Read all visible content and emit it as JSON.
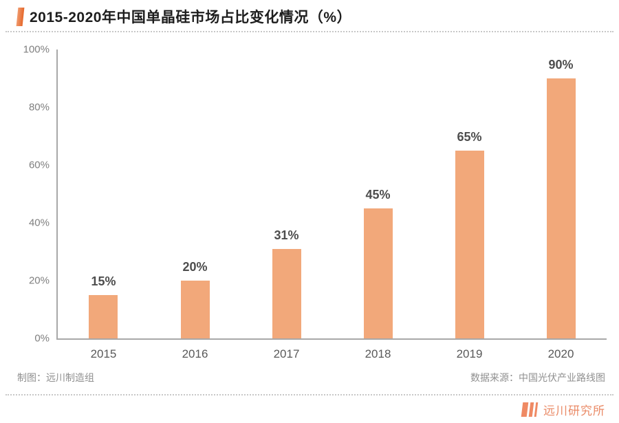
{
  "header": {
    "title": "2015-2020年中国单晶硅市场占比变化情况（%）"
  },
  "chart_data": {
    "type": "bar",
    "title": "2015-2020年中国单晶硅市场占比变化情况（%）",
    "categories": [
      "2015",
      "2016",
      "2017",
      "2018",
      "2019",
      "2020"
    ],
    "values": [
      15,
      20,
      31,
      45,
      65,
      90
    ],
    "value_labels": [
      "15%",
      "20%",
      "31%",
      "45%",
      "65%",
      "90%"
    ],
    "xlabel": "",
    "ylabel": "",
    "ylim": [
      0,
      100
    ],
    "ytick_values": [
      0,
      20,
      40,
      60,
      80,
      100
    ],
    "ytick_labels": [
      "0%",
      "20%",
      "40%",
      "60%",
      "80%",
      "100%"
    ],
    "grid": false,
    "legend": "none",
    "bar_color": "#F2A87A"
  },
  "footer": {
    "left": "制图：远川制造组",
    "right": "数据来源：中国光伏产业路线图"
  },
  "brand": {
    "name": "远川研究所",
    "logo_icon": "three-bars-icon",
    "color": "#EA8A66"
  },
  "colors": {
    "accent": "#E8702E",
    "bar": "#F2A87A",
    "axis": "#A8A8A8",
    "tick_text": "#7F7F7F",
    "value_text": "#4D4D4D"
  }
}
